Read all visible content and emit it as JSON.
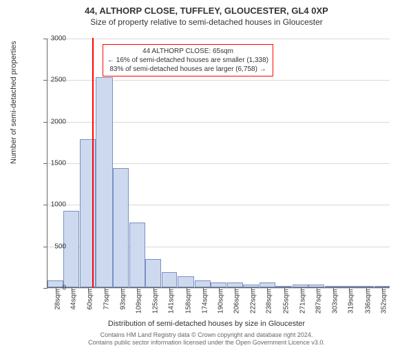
{
  "titles": {
    "line1": "44, ALTHORP CLOSE, TUFFLEY, GLOUCESTER, GL4 0XP",
    "line2": "Size of property relative to semi-detached houses in Gloucester"
  },
  "chart": {
    "type": "histogram",
    "ylabel": "Number of semi-detached properties",
    "xlabel": "Distribution of semi-detached houses by size in Gloucester",
    "ylim": [
      0,
      3000
    ],
    "yticks": [
      0,
      500,
      1000,
      1500,
      2000,
      2500,
      3000
    ],
    "xticks": [
      "28sqm",
      "44sqm",
      "60sqm",
      "77sqm",
      "93sqm",
      "109sqm",
      "125sqm",
      "141sqm",
      "158sqm",
      "174sqm",
      "190sqm",
      "206sqm",
      "222sqm",
      "238sqm",
      "255sqm",
      "271sqm",
      "287sqm",
      "303sqm",
      "319sqm",
      "336sqm",
      "352sqm"
    ],
    "xtick_fontsize": 10,
    "ytick_fontsize": 10,
    "label_fontsize": 11,
    "background_color": "#ffffff",
    "grid_color": "#d9d9d9",
    "axis_color": "#666666",
    "bar_fill": "#cdd9ef",
    "bar_stroke": "#7a90c2",
    "marker_color": "#ff0000",
    "marker_x": 65,
    "x_domain": [
      20,
      360
    ],
    "bars": [
      {
        "x0": 20,
        "x1": 36,
        "v": 80
      },
      {
        "x0": 36,
        "x1": 52,
        "v": 920
      },
      {
        "x0": 52,
        "x1": 68,
        "v": 1780
      },
      {
        "x0": 68,
        "x1": 85,
        "v": 2530
      },
      {
        "x0": 85,
        "x1": 101,
        "v": 1430
      },
      {
        "x0": 101,
        "x1": 117,
        "v": 780
      },
      {
        "x0": 117,
        "x1": 133,
        "v": 340
      },
      {
        "x0": 133,
        "x1": 149,
        "v": 180
      },
      {
        "x0": 149,
        "x1": 166,
        "v": 130
      },
      {
        "x0": 166,
        "x1": 182,
        "v": 80
      },
      {
        "x0": 182,
        "x1": 198,
        "v": 60
      },
      {
        "x0": 198,
        "x1": 214,
        "v": 60
      },
      {
        "x0": 214,
        "x1": 230,
        "v": 30
      },
      {
        "x0": 230,
        "x1": 246,
        "v": 60
      },
      {
        "x0": 246,
        "x1": 263,
        "v": 20
      },
      {
        "x0": 263,
        "x1": 279,
        "v": 30
      },
      {
        "x0": 279,
        "x1": 295,
        "v": 30
      },
      {
        "x0": 295,
        "x1": 311,
        "v": 10
      },
      {
        "x0": 311,
        "x1": 328,
        "v": 10
      },
      {
        "x0": 328,
        "x1": 344,
        "v": 10
      },
      {
        "x0": 344,
        "x1": 360,
        "v": 10
      }
    ]
  },
  "annotation": {
    "border_color": "#ff0000",
    "line1": "44 ALTHORP CLOSE: 65sqm",
    "line2": "← 16% of semi-detached houses are smaller (1,338)",
    "line3": "83% of semi-detached houses are larger (6,758) →"
  },
  "footer": {
    "line1": "Contains HM Land Registry data © Crown copyright and database right 2024.",
    "line2": "Contains public sector information licensed under the Open Government Licence v3.0."
  }
}
